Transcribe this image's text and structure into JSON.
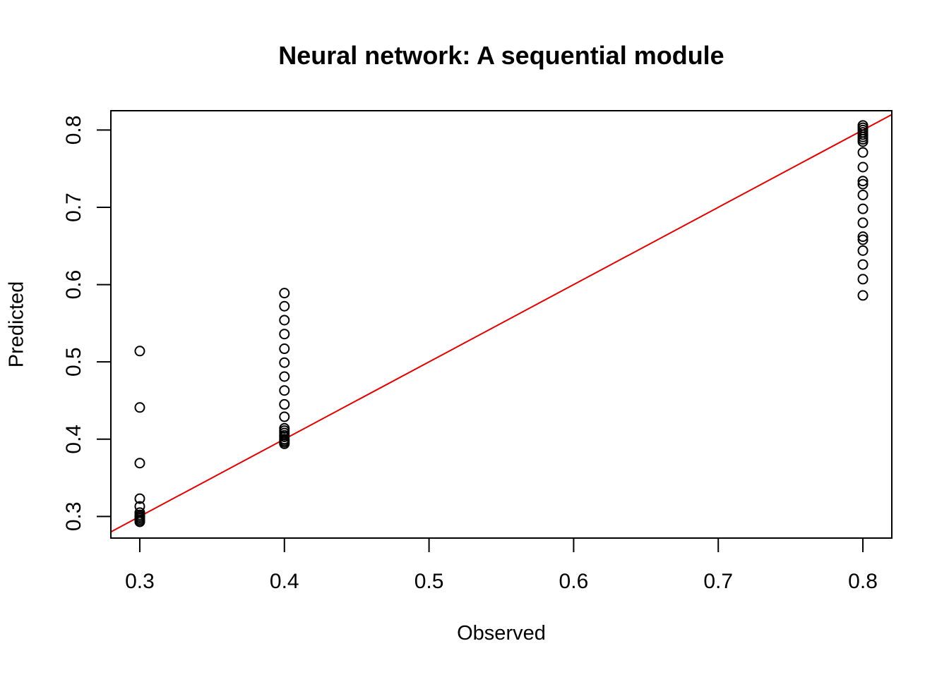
{
  "chart_data": {
    "type": "scatter",
    "title": "Neural network: A sequential module",
    "xlabel": "Observed",
    "ylabel": "Predicted",
    "xlim": [
      0.28,
      0.82
    ],
    "ylim": [
      0.272,
      0.825
    ],
    "x_ticks": [
      "0.3",
      "0.4",
      "0.5",
      "0.6",
      "0.7",
      "0.8"
    ],
    "y_ticks": [
      "0.3",
      "0.4",
      "0.5",
      "0.6",
      "0.7",
      "0.8"
    ],
    "grid": false,
    "legend": "none",
    "reference_line": {
      "intercept": 0,
      "slope": 1,
      "color": "#dd0000"
    },
    "point_color": "#000000",
    "points": [
      {
        "x": 0.3,
        "y": 0.514
      },
      {
        "x": 0.3,
        "y": 0.441
      },
      {
        "x": 0.3,
        "y": 0.369
      },
      {
        "x": 0.3,
        "y": 0.323
      },
      {
        "x": 0.3,
        "y": 0.313
      },
      {
        "x": 0.3,
        "y": 0.305
      },
      {
        "x": 0.3,
        "y": 0.302
      },
      {
        "x": 0.3,
        "y": 0.3
      },
      {
        "x": 0.3,
        "y": 0.298
      },
      {
        "x": 0.3,
        "y": 0.296
      },
      {
        "x": 0.3,
        "y": 0.294
      },
      {
        "x": 0.3,
        "y": 0.293
      },
      {
        "x": 0.4,
        "y": 0.589
      },
      {
        "x": 0.4,
        "y": 0.572
      },
      {
        "x": 0.4,
        "y": 0.554
      },
      {
        "x": 0.4,
        "y": 0.536
      },
      {
        "x": 0.4,
        "y": 0.517
      },
      {
        "x": 0.4,
        "y": 0.499
      },
      {
        "x": 0.4,
        "y": 0.481
      },
      {
        "x": 0.4,
        "y": 0.463
      },
      {
        "x": 0.4,
        "y": 0.445
      },
      {
        "x": 0.4,
        "y": 0.429
      },
      {
        "x": 0.4,
        "y": 0.414
      },
      {
        "x": 0.4,
        "y": 0.411
      },
      {
        "x": 0.4,
        "y": 0.408
      },
      {
        "x": 0.4,
        "y": 0.405
      },
      {
        "x": 0.4,
        "y": 0.403
      },
      {
        "x": 0.4,
        "y": 0.4
      },
      {
        "x": 0.4,
        "y": 0.398
      },
      {
        "x": 0.4,
        "y": 0.396
      },
      {
        "x": 0.4,
        "y": 0.394
      },
      {
        "x": 0.8,
        "y": 0.806
      },
      {
        "x": 0.8,
        "y": 0.803
      },
      {
        "x": 0.8,
        "y": 0.8
      },
      {
        "x": 0.8,
        "y": 0.797
      },
      {
        "x": 0.8,
        "y": 0.794
      },
      {
        "x": 0.8,
        "y": 0.791
      },
      {
        "x": 0.8,
        "y": 0.788
      },
      {
        "x": 0.8,
        "y": 0.785
      },
      {
        "x": 0.8,
        "y": 0.771
      },
      {
        "x": 0.8,
        "y": 0.752
      },
      {
        "x": 0.8,
        "y": 0.734
      },
      {
        "x": 0.8,
        "y": 0.73
      },
      {
        "x": 0.8,
        "y": 0.716
      },
      {
        "x": 0.8,
        "y": 0.698
      },
      {
        "x": 0.8,
        "y": 0.68
      },
      {
        "x": 0.8,
        "y": 0.662
      },
      {
        "x": 0.8,
        "y": 0.658
      },
      {
        "x": 0.8,
        "y": 0.644
      },
      {
        "x": 0.8,
        "y": 0.626
      },
      {
        "x": 0.8,
        "y": 0.607
      },
      {
        "x": 0.8,
        "y": 0.586
      }
    ]
  }
}
